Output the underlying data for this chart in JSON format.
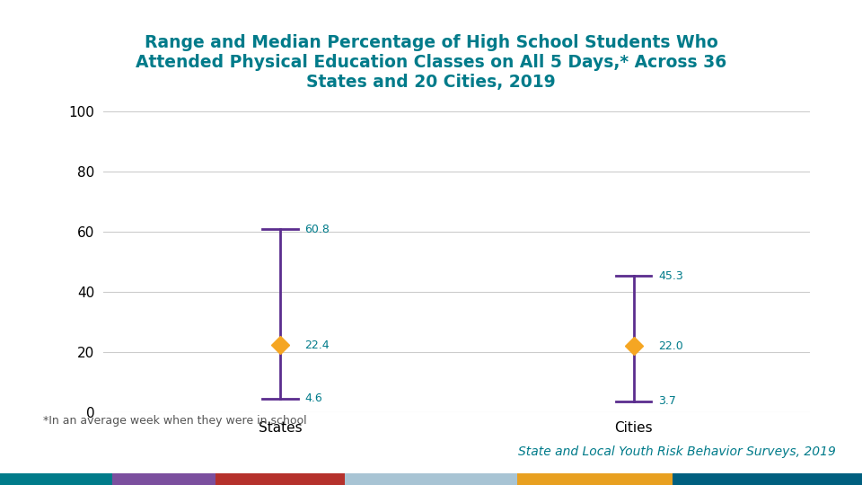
{
  "title": "Range and Median Percentage of High School Students Who\nAttended Physical Education Classes on All 5 Days,* Across 36\nStates and 20 Cities, 2019",
  "categories": [
    "States",
    "Cities"
  ],
  "medians": [
    22.4,
    22.0
  ],
  "highs": [
    60.8,
    45.3
  ],
  "lows": [
    4.6,
    3.7
  ],
  "ylim": [
    0,
    100
  ],
  "yticks": [
    0,
    20,
    40,
    60,
    80,
    100
  ],
  "line_color": "#5b2d8e",
  "median_color": "#f5a623",
  "median_marker": "D",
  "median_marker_size": 10,
  "cap_color": "#5b2d8e",
  "line_width": 2.0,
  "title_color": "#007b8a",
  "title_fontsize": 13.5,
  "axis_label_fontsize": 11,
  "tick_fontsize": 11,
  "footnote": "*In an average week when they were in school",
  "footnote_fontsize": 9,
  "source": "State and Local Youth Risk Behavior Surveys, 2019",
  "source_fontsize": 10,
  "source_color": "#007b8a",
  "background_color": "#ffffff",
  "grid_color": "#cccccc",
  "bar_positions": [
    1,
    2
  ],
  "xlim": [
    0.5,
    2.5
  ],
  "label_fontsize": 9,
  "label_color": "#007b8a",
  "bottom_bar_colors": [
    "#007b8a",
    "#7b4f9e",
    "#b5312c",
    "#a8c4d4",
    "#e8a020",
    "#005f7f"
  ],
  "bottom_bar_widths": [
    0.13,
    0.12,
    0.15,
    0.2,
    0.18,
    0.22
  ]
}
